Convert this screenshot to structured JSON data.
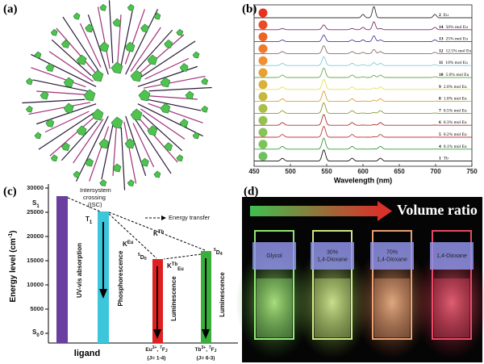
{
  "panels": {
    "a": {
      "label": "(a)"
    },
    "b": {
      "label": "(b)",
      "xlabel": "Wavelength (nm)",
      "xticks": [
        "450",
        "500",
        "550",
        "600",
        "650",
        "700",
        "750"
      ],
      "rows": [
        {
          "num": "2",
          "text": "Eu",
          "dot": "#e8321e",
          "line": "#333333"
        },
        {
          "num": "14",
          "text": "50% mol Eu",
          "dot": "#ec4a22",
          "line": "#7a2f6a"
        },
        {
          "num": "13",
          "text": "25% mol Eu",
          "dot": "#ee6226",
          "line": "#4a3f9a"
        },
        {
          "num": "12",
          "text": "12.5% mol Eu",
          "dot": "#f07a2a",
          "line": "#8d6e63"
        },
        {
          "num": "11",
          "text": "10% mol Eu",
          "dot": "#f09030",
          "line": "#7ecbe0"
        },
        {
          "num": "10",
          "text": "5.0% mol Eu",
          "dot": "#e8a030",
          "line": "#6aa84f"
        },
        {
          "num": "9",
          "text": "2.0% mol Eu",
          "dot": "#d9b03a",
          "line": "#e8e04a"
        },
        {
          "num": "8",
          "text": "1.0% mol Eu",
          "dot": "#c4b840",
          "line": "#e0a030"
        },
        {
          "num": "7",
          "text": "0.5% mol Eu",
          "dot": "#a8c048",
          "line": "#8a9a30"
        },
        {
          "num": "6",
          "text": "0.3% mol Eu",
          "dot": "#94c250",
          "line": "#b03030"
        },
        {
          "num": "5",
          "text": "0.2% mol Eu",
          "dot": "#86c456",
          "line": "#c03838"
        },
        {
          "num": "4",
          "text": "0.1% mol Eu",
          "dot": "#7cc45a",
          "line": "#3a9a3a"
        },
        {
          "num": "1",
          "text": "Tb",
          "dot": "#70c060",
          "line": "#111111"
        }
      ]
    },
    "c": {
      "label": "(c)",
      "ylabel": "Energy level (cm",
      "ylabel_sup": "-1",
      "ylabel_end": ")",
      "yticks": [
        "0",
        "5000",
        "10000",
        "15000",
        "20000",
        "25000",
        "30000"
      ],
      "s1": {
        "main": "S",
        "sub": "1"
      },
      "s0": {
        "main": "S",
        "sub": "0"
      },
      "t1": {
        "main": "T",
        "sub": "1"
      },
      "isc": [
        "Intersystem",
        "crossing",
        "(ISC)"
      ],
      "energy_transfer": "Energy transfer",
      "ktb": {
        "main": "K",
        "sup": "Tb"
      },
      "keu": {
        "main": "K",
        "sup": "Eu"
      },
      "ktbeu": {
        "main": "K",
        "sup": "Tb",
        "sub": "Eu"
      },
      "d0": {
        "sup": "5",
        "main": "D",
        "sub": "0"
      },
      "d4": {
        "sup": "5",
        "main": "D",
        "sub": "4"
      },
      "uv": "UV-vis absorption",
      "phos": "Phosphorescence",
      "lum": "Luminescence",
      "ligand": "ligand",
      "eu": {
        "main": "Eu",
        "sup": "3+",
        "mid": ", ",
        "sup2": "7",
        "f": "F",
        "sub": "J",
        "range": "(J= 1-4)"
      },
      "tb": {
        "main": "Tb",
        "sup": "3+",
        "mid": ", ",
        "sup2": "7",
        "f": "F",
        "sub": "J",
        "range": "(J= 6-3)"
      }
    },
    "d": {
      "label": "(d)",
      "title": "Volume ratio",
      "cuvettes": [
        [
          "Glycol"
        ],
        [
          "30%",
          "1,4-Dioxane"
        ],
        [
          "70%",
          "1,4-Dioxane"
        ],
        [
          "1,4-Dioxane"
        ]
      ]
    }
  }
}
